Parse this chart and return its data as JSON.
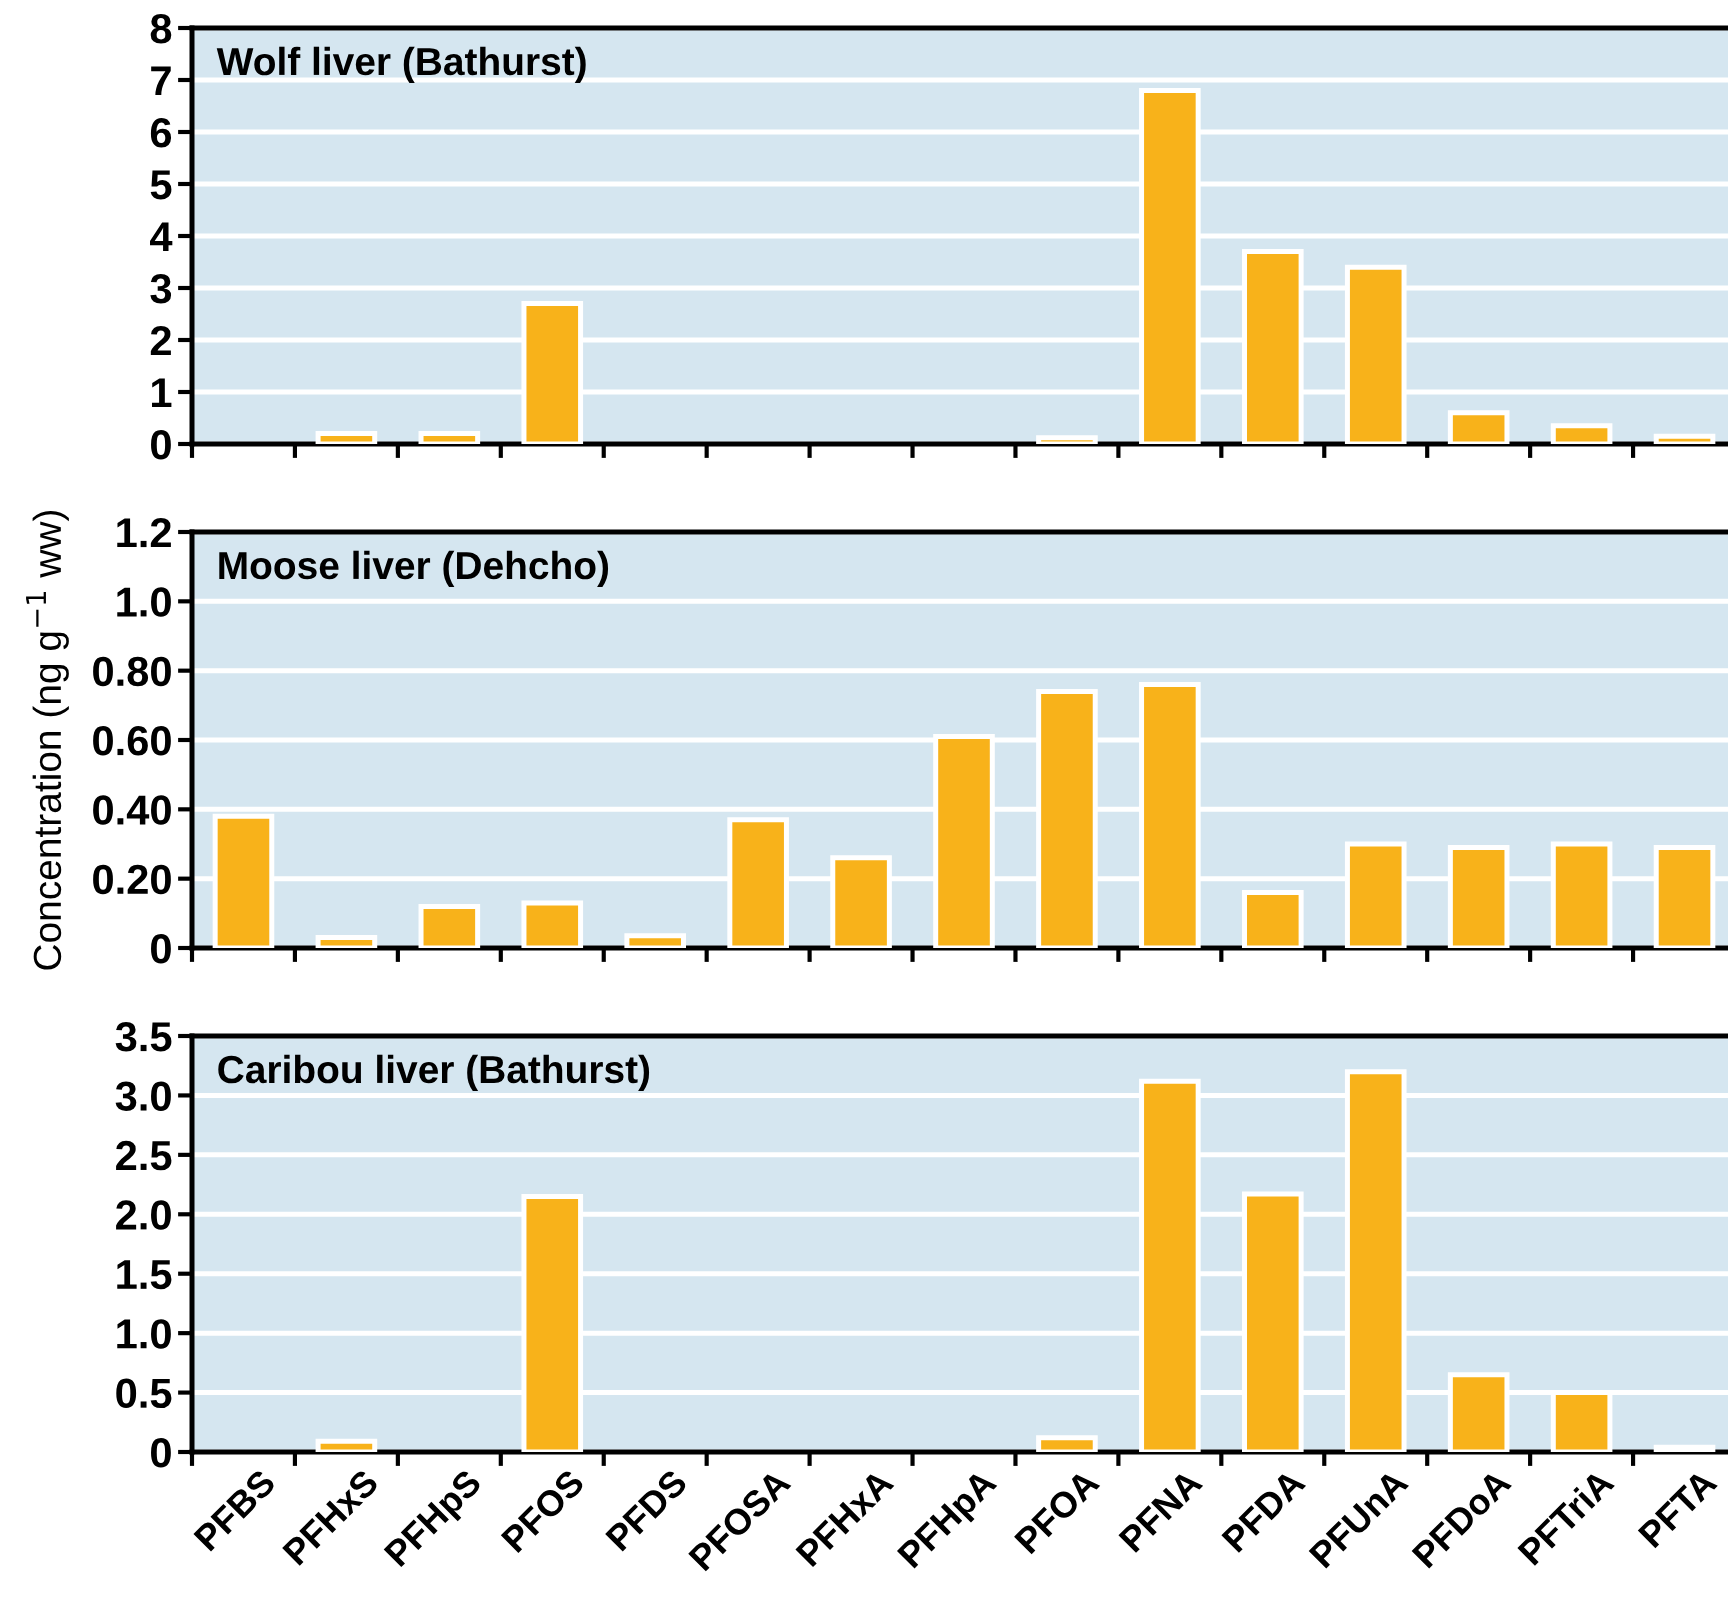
{
  "chart_data": [
    {
      "type": "bar",
      "title": "Wolf liver (Bathurst)",
      "categories": [
        null,
        null,
        null,
        null,
        null,
        null,
        null,
        null,
        null,
        null,
        null,
        null,
        null,
        null,
        null
      ],
      "series": [
        {
          "color": "#f8b21a",
          "values": [
            null,
            0.2,
            0.2,
            2.7,
            null,
            null,
            null,
            null,
            0.12,
            6.8,
            3.7,
            3.4,
            0.6,
            0.35,
            0.15
          ]
        }
      ],
      "ylim": [
        0,
        8
      ],
      "yticks": [
        0,
        1,
        2,
        3,
        4,
        5,
        6,
        7,
        8
      ],
      "grid": "y",
      "tick_labels": "y"
    },
    {
      "type": "bar",
      "title": "Moose liver (Dehcho)",
      "ylabel": "Concentration (ng g$^{−1}$ ww)",
      "categories": [
        null,
        null,
        null,
        null,
        null,
        null,
        null,
        null,
        null,
        null,
        null,
        null,
        null,
        null,
        null
      ],
      "series": [
        {
          "color": "#f8b21a",
          "values": [
            0.38,
            0.03,
            0.12,
            0.13,
            0.035,
            0.37,
            0.26,
            0.61,
            0.74,
            0.76,
            0.16,
            0.3,
            0.29,
            0.3,
            0.29
          ]
        }
      ],
      "ylim": [
        0,
        1.2
      ],
      "yticks": [
        0,
        {
          "value": 0.2,
          "label": "0.20"
        },
        {
          "value": 0.4,
          "label": "0.40"
        },
        {
          "value": 0.6,
          "label": "0.60"
        },
        {
          "value": 0.8,
          "label": "0.80"
        },
        {
          "value": 1.0,
          "label": "1.0"
        },
        1.2
      ],
      "grid": "y",
      "tick_labels": "y"
    },
    {
      "type": "bar",
      "title": "Caribou liver (Bathurst)",
      "categories": [
        "PFBS",
        "PFHxS",
        "PFHpS",
        "PFOS",
        "PFDS",
        "PFOSA",
        "PFHxA",
        "PFHpA",
        "PFOA",
        "PFNA",
        "PFDA",
        "PFUnA",
        "PFDoA",
        "PFTriA",
        "PFTA"
      ],
      "series": [
        {
          "color": "#f8b21a",
          "values": [
            null,
            0.09,
            null,
            2.15,
            null,
            null,
            null,
            null,
            0.12,
            3.12,
            2.17,
            3.2,
            0.65,
            0.5,
            0.04
          ]
        }
      ],
      "ylim": [
        0,
        3.5
      ],
      "yticks": [
        0,
        0.5,
        {
          "value": 1.0,
          "label": "1.0"
        },
        1.5,
        {
          "value": 2.0,
          "label": "2.0"
        },
        2.5,
        {
          "value": 3.0,
          "label": "3.0"
        },
        3.5
      ],
      "grid": "y"
    }
  ]
}
